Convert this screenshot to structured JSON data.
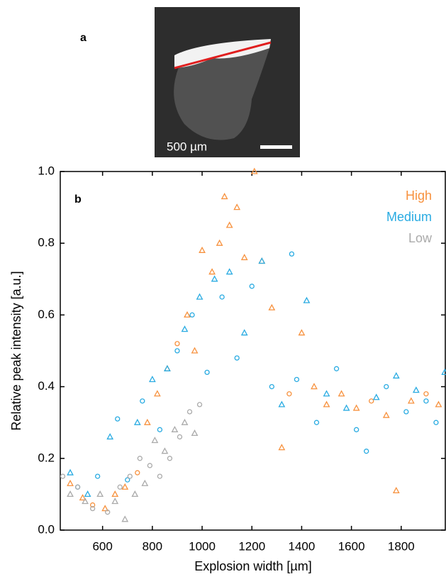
{
  "panel_a": {
    "label": "a",
    "scale_label": "500 µm"
  },
  "chart_data": {
    "type": "scatter",
    "panel_label": "b",
    "x_label": "Explosion width [µm]",
    "y_label": "Relative peak intensity [a.u.]",
    "xlim": [
      430,
      1980
    ],
    "ylim": [
      0,
      1
    ],
    "xticks": [
      600,
      800,
      1000,
      1200,
      1400,
      1600,
      1800
    ],
    "yticks": [
      {
        "value": 0,
        "label": "0.0"
      },
      0.2,
      0.4,
      0.6,
      0.8,
      {
        "value": 1,
        "label": "1.0"
      }
    ],
    "legend": "top-right",
    "series": [
      {
        "name": "High",
        "color": "#f7913d",
        "x": [
          470,
          520,
          560,
          610,
          650,
          690,
          740,
          780,
          820,
          860,
          900,
          940,
          970,
          1000,
          1040,
          1070,
          1090,
          1110,
          1140,
          1170,
          1210,
          1240,
          1280,
          1320,
          1350,
          1400,
          1450,
          1500,
          1560,
          1620,
          1680,
          1740,
          1780,
          1840,
          1900,
          1950
        ],
        "values": [
          0.13,
          0.09,
          0.07,
          0.06,
          0.1,
          0.12,
          0.16,
          0.3,
          0.38,
          0.45,
          0.52,
          0.6,
          0.5,
          0.78,
          0.72,
          0.8,
          0.93,
          0.85,
          0.9,
          0.76,
          1.0,
          0.75,
          0.62,
          0.23,
          0.38,
          0.55,
          0.4,
          0.35,
          0.38,
          0.34,
          0.36,
          0.32,
          0.11,
          0.36,
          0.38,
          0.35
        ],
        "markers": [
          "triangle",
          "triangle",
          "circle",
          "triangle",
          "triangle",
          "triangle",
          "circle",
          "triangle",
          "triangle",
          "triangle",
          "circle",
          "triangle",
          "triangle",
          "triangle",
          "triangle",
          "triangle",
          "triangle",
          "triangle",
          "triangle",
          "triangle",
          "triangle",
          "triangle",
          "triangle",
          "triangle",
          "circle",
          "triangle",
          "triangle",
          "triangle",
          "triangle",
          "triangle",
          "circle",
          "triangle",
          "triangle",
          "triangle",
          "circle",
          "triangle"
        ]
      },
      {
        "name": "Medium",
        "color": "#29abe2",
        "x": [
          470,
          500,
          540,
          580,
          630,
          660,
          700,
          740,
          760,
          800,
          830,
          860,
          900,
          930,
          960,
          990,
          1020,
          1050,
          1080,
          1110,
          1140,
          1170,
          1200,
          1240,
          1280,
          1320,
          1360,
          1380,
          1420,
          1460,
          1500,
          1540,
          1580,
          1620,
          1660,
          1700,
          1740,
          1780,
          1820,
          1860,
          1900,
          1940,
          1975
        ],
        "values": [
          0.16,
          0.12,
          0.1,
          0.15,
          0.26,
          0.31,
          0.14,
          0.3,
          0.36,
          0.42,
          0.28,
          0.45,
          0.5,
          0.56,
          0.6,
          0.65,
          0.44,
          0.7,
          0.65,
          0.72,
          0.48,
          0.55,
          0.68,
          0.75,
          0.4,
          0.35,
          0.77,
          0.42,
          0.64,
          0.3,
          0.38,
          0.45,
          0.34,
          0.28,
          0.22,
          0.37,
          0.4,
          0.43,
          0.33,
          0.39,
          0.36,
          0.3,
          0.44
        ],
        "markers": [
          "triangle",
          "circle",
          "triangle",
          "circle",
          "triangle",
          "circle",
          "circle",
          "triangle",
          "circle",
          "triangle",
          "circle",
          "triangle",
          "circle",
          "triangle",
          "circle",
          "triangle",
          "circle",
          "triangle",
          "circle",
          "triangle",
          "circle",
          "triangle",
          "circle",
          "triangle",
          "circle",
          "triangle",
          "circle",
          "circle",
          "triangle",
          "circle",
          "triangle",
          "circle",
          "triangle",
          "circle",
          "circle",
          "triangle",
          "circle",
          "triangle",
          "circle",
          "triangle",
          "circle",
          "circle",
          "triangle"
        ]
      },
      {
        "name": "Low",
        "color": "#aaaaaa",
        "x": [
          440,
          470,
          500,
          530,
          560,
          590,
          620,
          650,
          670,
          690,
          710,
          730,
          750,
          770,
          790,
          810,
          830,
          850,
          870,
          890,
          910,
          930,
          950,
          970,
          990
        ],
        "values": [
          0.15,
          0.1,
          0.12,
          0.08,
          0.06,
          0.1,
          0.05,
          0.08,
          0.12,
          0.03,
          0.15,
          0.1,
          0.2,
          0.13,
          0.18,
          0.25,
          0.15,
          0.22,
          0.2,
          0.28,
          0.26,
          0.3,
          0.33,
          0.27,
          0.35
        ],
        "markers": [
          "circle",
          "triangle",
          "circle",
          "triangle",
          "circle",
          "triangle",
          "circle",
          "triangle",
          "circle",
          "triangle",
          "circle",
          "triangle",
          "circle",
          "triangle",
          "circle",
          "triangle",
          "circle",
          "triangle",
          "circle",
          "triangle",
          "circle",
          "triangle",
          "circle",
          "triangle",
          "circle"
        ]
      }
    ]
  }
}
